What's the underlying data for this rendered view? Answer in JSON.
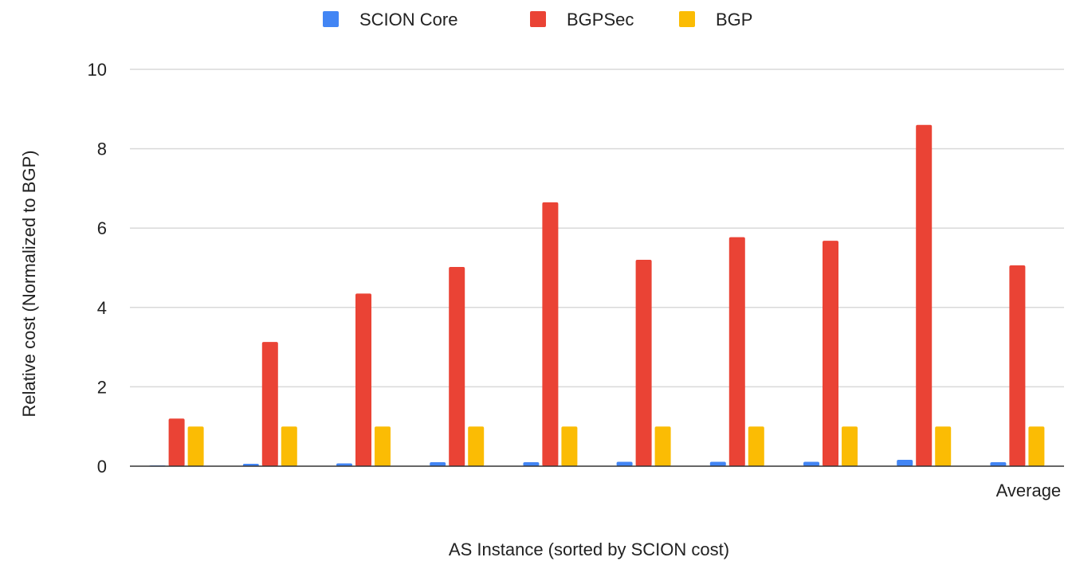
{
  "chart_data": {
    "type": "bar",
    "title": "",
    "xlabel": "AS Instance (sorted by SCION cost)",
    "ylabel": "Relative cost (Normalized to BGP)",
    "ylim": [
      0,
      10
    ],
    "yticks": [
      0,
      2,
      4,
      6,
      8,
      10
    ],
    "grid": true,
    "legend_position": "top-center",
    "categories": [
      "",
      "",
      "",
      "",
      "",
      "",
      "",
      "",
      "",
      "Average"
    ],
    "series": [
      {
        "name": "SCION Core",
        "color": "#4285F4",
        "values": [
          0.02,
          0.06,
          0.07,
          0.1,
          0.1,
          0.11,
          0.11,
          0.11,
          0.16,
          0.1
        ]
      },
      {
        "name": "BGPSec",
        "color": "#EA4335",
        "values": [
          1.2,
          3.13,
          4.35,
          5.02,
          6.65,
          5.2,
          5.77,
          5.68,
          8.6,
          5.06
        ]
      },
      {
        "name": "BGP",
        "color": "#FBBC04",
        "values": [
          1.0,
          1.0,
          1.0,
          1.0,
          1.0,
          1.0,
          1.0,
          1.0,
          1.0,
          1.0
        ]
      }
    ]
  }
}
